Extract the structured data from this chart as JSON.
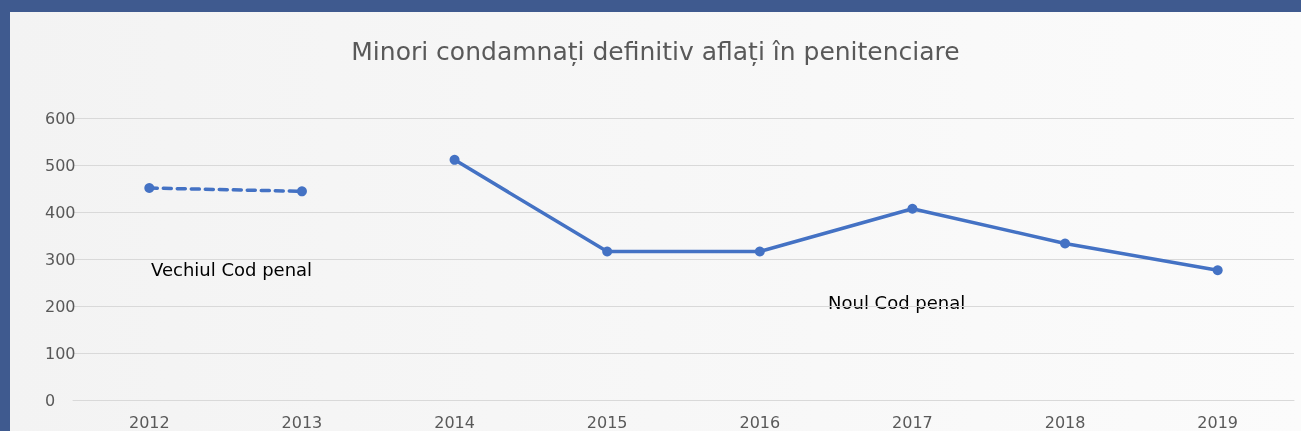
{
  "chart_data": {
    "type": "line",
    "title": "Minori condamnați definitiv aflați în penitenciare",
    "categories": [
      "2012",
      "2013",
      "2014",
      "2015",
      "2016",
      "2017",
      "2018",
      "2019"
    ],
    "series": [
      {
        "color": "#4472c4",
        "line_style": "dashed",
        "values": [
          451,
          444,
          null,
          null,
          null,
          null,
          null,
          null
        ]
      },
      {
        "color": "#4472c4",
        "line_style": "solid",
        "values": [
          null,
          null,
          511,
          316,
          316,
          407,
          333,
          276
        ]
      }
    ],
    "ylim": [
      0,
      600
    ],
    "yticks": [
      0,
      100,
      200,
      300,
      400,
      500,
      600
    ],
    "grid": "y",
    "marker": "circle",
    "annotations": [
      "Vechiul Cod penal",
      "Noul Cod penal"
    ]
  }
}
